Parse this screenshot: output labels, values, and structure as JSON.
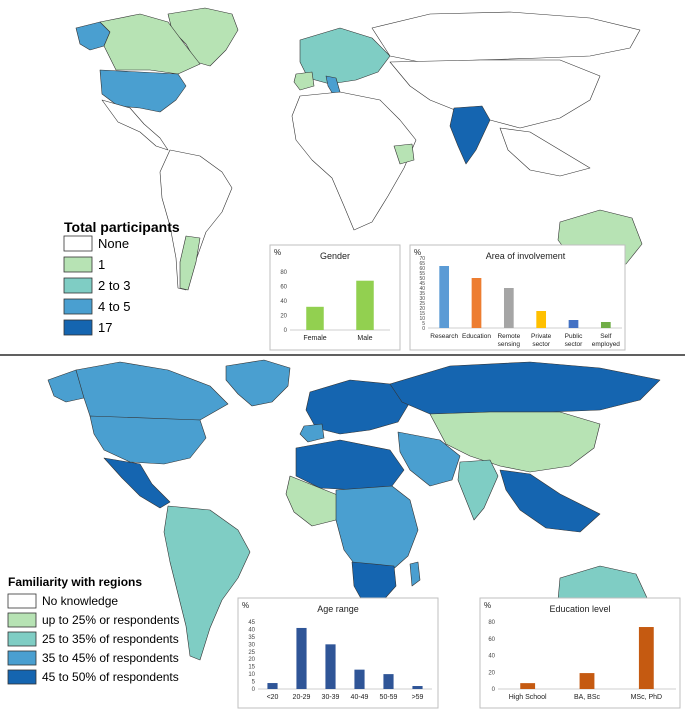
{
  "colors": {
    "none": "#ffffff",
    "c1": "#b7e3b4",
    "c2": "#7fcdc4",
    "c3": "#4a9fd0",
    "c4": "#1565b0",
    "gender_bar": "#92d050",
    "age_bar": "#2f5597",
    "edu_bar": "#c55a11",
    "research": "#5b9bd5",
    "education": "#ed7d31",
    "remote": "#a5a5a5",
    "private": "#ffc000",
    "public": "#4472c4",
    "self": "#70ad47"
  },
  "top_legend": {
    "title": "Total participants",
    "items": [
      {
        "label": "None",
        "color": "#ffffff"
      },
      {
        "label": "1",
        "color": "#b7e3b4"
      },
      {
        "label": "2 to 3",
        "color": "#7fcdc4"
      },
      {
        "label": "4 to 5",
        "color": "#4a9fd0"
      },
      {
        "label": "17",
        "color": "#1565b0"
      }
    ]
  },
  "bottom_legend": {
    "title": "Familiarity with regions",
    "items": [
      {
        "label": "No knowledge",
        "color": "#ffffff"
      },
      {
        "label": "up to 25% or respondents",
        "color": "#b7e3b4"
      },
      {
        "label": "25 to 35% of respondents",
        "color": "#7fcdc4"
      },
      {
        "label": "35 to 45% of respondents",
        "color": "#4a9fd0"
      },
      {
        "label": "45 to 50% of respondents",
        "color": "#1565b0"
      }
    ]
  },
  "chart_data": [
    {
      "type": "bar",
      "title": "Gender",
      "ylabel": "%",
      "categories": [
        "Female",
        "Male"
      ],
      "values": [
        32,
        68
      ],
      "ylim": [
        0,
        80
      ],
      "yticks": [
        "0",
        "20",
        "40",
        "60",
        "80"
      ],
      "color": "#92d050",
      "grid": false
    },
    {
      "type": "bar",
      "title": "Area of involvement",
      "ylabel": "%",
      "categories": [
        "Research",
        "Education",
        "Remote sensing",
        "Private sector",
        "Public sector",
        "Self employed"
      ],
      "values": [
        62,
        50,
        40,
        17,
        8,
        6
      ],
      "ylim": [
        0,
        70
      ],
      "yticks": [
        "0",
        "5",
        "10",
        "15",
        "20",
        "25",
        "30",
        "35",
        "40",
        "45",
        "50",
        "55",
        "60",
        "65",
        "70"
      ],
      "colors": [
        "#5b9bd5",
        "#ed7d31",
        "#a5a5a5",
        "#ffc000",
        "#4472c4",
        "#70ad47"
      ],
      "grid": false
    },
    {
      "type": "bar",
      "title": "Age range",
      "ylabel": "%",
      "categories": [
        "<20",
        "20-29",
        "30-39",
        "40-49",
        "50-59",
        ">59"
      ],
      "values": [
        4,
        41,
        30,
        13,
        10,
        2
      ],
      "ylim": [
        0,
        45
      ],
      "yticks": [
        "0",
        "5",
        "10",
        "15",
        "20",
        "25",
        "30",
        "35",
        "40",
        "45"
      ],
      "color": "#2f5597",
      "grid": false
    },
    {
      "type": "bar",
      "title": "Education level",
      "ylabel": "%",
      "categories": [
        "High School",
        "BA, BSc",
        "MSc, PhD"
      ],
      "values": [
        7,
        19,
        74
      ],
      "ylim": [
        0,
        80
      ],
      "yticks": [
        "0",
        "20",
        "40",
        "60",
        "80"
      ],
      "color": "#c55a11",
      "grid": false
    }
  ]
}
